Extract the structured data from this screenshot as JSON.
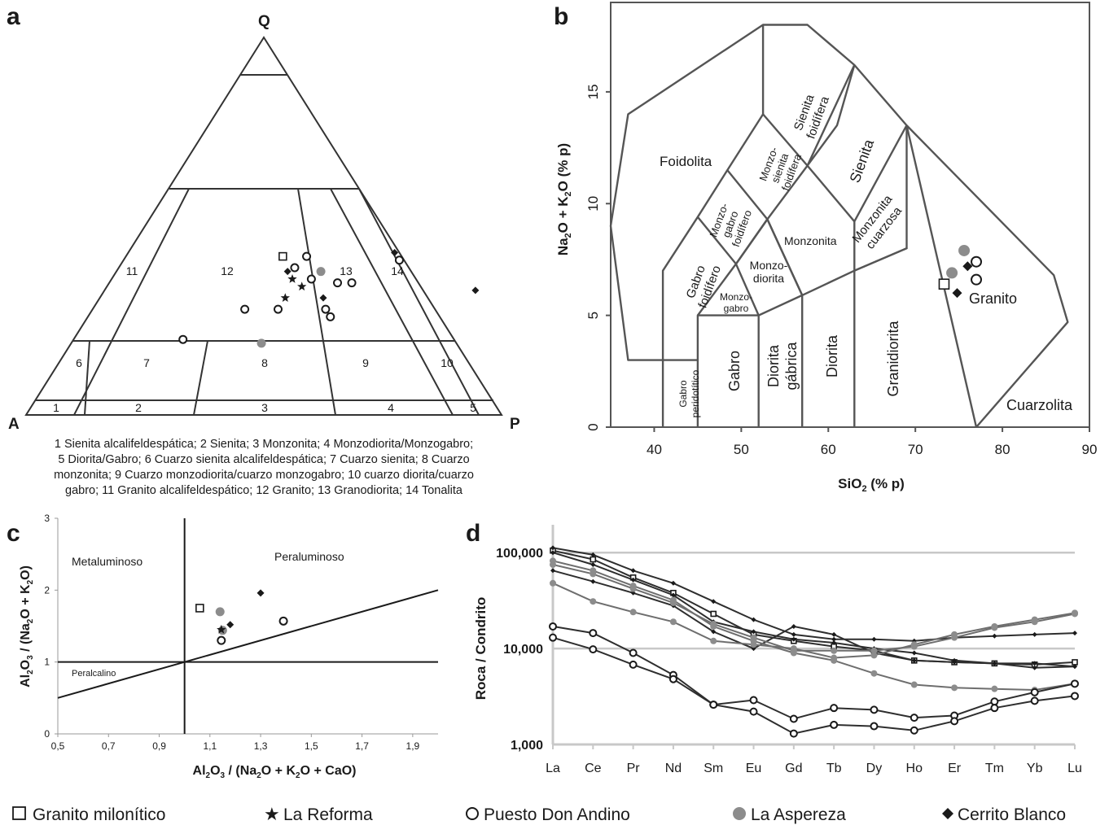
{
  "panel_letters": [
    "a",
    "b",
    "c",
    "d"
  ],
  "legend": [
    {
      "marker": "open-square",
      "label": "Granito milonítico"
    },
    {
      "marker": "star",
      "label": "La Reforma"
    },
    {
      "marker": "open-circle",
      "label": "Puesto Don Andino"
    },
    {
      "marker": "gray-circle",
      "label": "La Aspereza"
    },
    {
      "marker": "black-diamond",
      "label": "Cerrito Blanco"
    }
  ],
  "colors": {
    "line": "#555555",
    "ink": "#1a1a1a",
    "gray_marker": "#8c8c8c",
    "grid": "#c8c8c8"
  },
  "chart_data": [
    {
      "type": "scatter",
      "subtype": "ternary QAP (Streckeisen)",
      "vertices": {
        "top": "Q",
        "left": "A",
        "right": "P"
      },
      "field_numbers": [
        "1",
        "2",
        "3",
        "4",
        "5",
        "6",
        "7",
        "8",
        "9",
        "10",
        "11",
        "12",
        "13",
        "14"
      ],
      "caption_lines": [
        "1 Sienita alcalifeldespática; 2 Sienita; 3 Monzonita; 4 Monzodiorita/Monzogabro;",
        "5 Diorita/Gabro; 6 Cuarzo sienita alcalifeldespática; 7 Cuarzo sienita; 8 Cuarzo",
        "monzonita; 9 Cuarzo monzodiorita/cuarzo monzogabro; 10 cuarzo diorita/cuarzo",
        "gabro; 11 Granito alcalifeldespático; 12 Granito; 13 Granodiorita; 14 Tonalita"
      ],
      "points_QP": [
        {
          "series": "Granito milonítico",
          "Q": 42,
          "P": 33
        },
        {
          "series": "La Reforma",
          "Q": 36,
          "P": 38
        },
        {
          "series": "La Reforma",
          "Q": 34,
          "P": 41
        },
        {
          "series": "La Reforma",
          "Q": 31,
          "P": 39
        },
        {
          "series": "Puesto Don Andino",
          "Q": 42,
          "P": 38
        },
        {
          "series": "Puesto Don Andino",
          "Q": 39,
          "P": 37
        },
        {
          "series": "Puesto Don Andino",
          "Q": 36,
          "P": 42
        },
        {
          "series": "Puesto Don Andino",
          "Q": 35,
          "P": 48
        },
        {
          "series": "Puesto Don Andino",
          "Q": 35,
          "P": 51
        },
        {
          "series": "Puesto Don Andino",
          "Q": 28,
          "P": 32
        },
        {
          "series": "Puesto Don Andino",
          "Q": 28,
          "P": 39
        },
        {
          "series": "Puesto Don Andino",
          "Q": 28,
          "P": 49
        },
        {
          "series": "Puesto Don Andino",
          "Q": 26,
          "P": 51
        },
        {
          "series": "Puesto Don Andino",
          "Q": 20,
          "P": 23
        },
        {
          "series": "Puesto Don Andino",
          "Q": 41,
          "P": 58
        },
        {
          "series": "La Aspereza",
          "Q": 38,
          "P": 43
        },
        {
          "series": "La Aspereza",
          "Q": 19,
          "P": 40
        },
        {
          "series": "Cerrito Blanco",
          "Q": 38,
          "P": 36
        },
        {
          "series": "Cerrito Blanco",
          "Q": 43,
          "P": 56
        },
        {
          "series": "Cerrito Blanco",
          "Q": 31,
          "P": 47
        },
        {
          "series": "Cerrito Blanco",
          "Q": 33,
          "P": 78
        }
      ]
    },
    {
      "type": "scatter",
      "subtype": "TAS classification diagram",
      "xlabel": "SiO",
      "xlabel_sub": "2",
      "xlabel_tail": " (% p)",
      "ylabel": "Na",
      "ylabel_sub1": "2",
      "ylabel_mid": "O + K",
      "ylabel_sub2": "2",
      "ylabel_tail": "O (% p)",
      "xlim": [
        35,
        90
      ],
      "ylim": [
        0,
        19
      ],
      "xticks": [
        40,
        50,
        60,
        70,
        80,
        90
      ],
      "yticks": [
        0,
        5,
        10,
        15
      ],
      "field_labels": [
        "Foidolita",
        "Sienita foidífera",
        "Monzo- sienita foidífera",
        "Sienita",
        "Monzo- gabro foidífero",
        "Monzonita",
        "Monzonita cuarzosa",
        "Gabro foidífero",
        "Monzo- diorita",
        "Monzo- gabro",
        "Gabro peridotítico",
        "Gabro",
        "Diorita gábrica",
        "Diorita",
        "Granidiorita",
        "Granito",
        "Cuarzolita"
      ],
      "points": [
        {
          "series": "Granito milonítico",
          "x": 73.3,
          "y": 6.4
        },
        {
          "series": "La Aspereza",
          "x": 74.2,
          "y": 6.9
        },
        {
          "series": "La Aspereza",
          "x": 75.6,
          "y": 7.9
        },
        {
          "series": "Cerrito Blanco",
          "x": 76.0,
          "y": 7.2
        },
        {
          "series": "Cerrito Blanco",
          "x": 74.8,
          "y": 6.0
        },
        {
          "series": "Puesto Don Andino",
          "x": 77.0,
          "y": 7.4
        },
        {
          "series": "Puesto Don Andino",
          "x": 77.0,
          "y": 6.6
        }
      ]
    },
    {
      "type": "scatter",
      "subtype": "Shand index diagram",
      "xlabel": "Al2O3 / (Na2O + K2O + CaO)",
      "ylabel": "Al2O3 / (Na2O + K2O)",
      "xlim": [
        0.5,
        2.0
      ],
      "ylim": [
        0,
        3
      ],
      "xticks": [
        "0,5",
        "0,7",
        "0,9",
        "1,1",
        "1,3",
        "1,5",
        "1,7",
        "1,9"
      ],
      "yticks": [
        "0",
        "1",
        "2",
        "3"
      ],
      "region_labels": [
        "Metaluminoso",
        "Peraluminoso",
        "Peralcalino"
      ],
      "points": [
        {
          "series": "Granito milonítico",
          "x": 1.06,
          "y": 1.75
        },
        {
          "series": "La Aspereza",
          "x": 1.14,
          "y": 1.7
        },
        {
          "series": "La Aspereza",
          "x": 1.15,
          "y": 1.44
        },
        {
          "series": "La Reforma",
          "x": 1.145,
          "y": 1.45
        },
        {
          "series": "Cerrito Blanco",
          "x": 1.18,
          "y": 1.52
        },
        {
          "series": "Cerrito Blanco",
          "x": 1.3,
          "y": 1.96
        },
        {
          "series": "Puesto Don Andino",
          "x": 1.145,
          "y": 1.3
        },
        {
          "series": "Puesto Don Andino",
          "x": 1.39,
          "y": 1.57
        }
      ]
    },
    {
      "type": "line",
      "subtype": "chondrite-normalized REE spider diagram (log scale)",
      "ylabel": "Roca / Condrito",
      "ylog": true,
      "ylim": [
        1000,
        140000
      ],
      "yticks": [
        "1,000",
        "10,000",
        "100,000"
      ],
      "categories": [
        "La",
        "Ce",
        "Pr",
        "Nd",
        "Sm",
        "Eu",
        "Gd",
        "Tb",
        "Dy",
        "Ho",
        "Er",
        "Tm",
        "Yb",
        "Lu"
      ],
      "series": [
        {
          "marker": "open-square",
          "values": [
            105000,
            85000,
            55000,
            38000,
            23000,
            14000,
            12000,
            10500,
            9500,
            7500,
            7200,
            7000,
            6800,
            7200
          ]
        },
        {
          "marker": "black-diamond",
          "values": [
            112000,
            95000,
            65000,
            48000,
            31000,
            20000,
            14000,
            12500,
            12500,
            12000,
            13000,
            13500,
            14000,
            14500
          ]
        },
        {
          "marker": "black-diamond",
          "values": [
            100000,
            75000,
            52000,
            36000,
            19000,
            15000,
            12500,
            11500,
            10000,
            9000,
            7500,
            7000,
            7000,
            6500
          ]
        },
        {
          "marker": "black-diamond",
          "values": [
            65000,
            50000,
            38000,
            28000,
            15000,
            10000,
            17000,
            14000,
            9000,
            7500,
            7200,
            7000,
            6300,
            6500
          ]
        },
        {
          "marker": "gray-circle",
          "values": [
            82000,
            65000,
            45000,
            32000,
            17000,
            12000,
            9000,
            7500,
            5500,
            4200,
            3900,
            3800,
            3700,
            4300
          ]
        },
        {
          "marker": "gray-circle",
          "values": [
            48000,
            31000,
            24000,
            19000,
            12000,
            11000,
            10000,
            8000,
            8500,
            11000,
            14000,
            17000,
            20000,
            23500
          ]
        },
        {
          "marker": "gray-circle",
          "values": [
            75000,
            60000,
            42000,
            30000,
            18000,
            13000,
            9500,
            9500,
            9500,
            10500,
            13000,
            16500,
            19000,
            23000
          ]
        },
        {
          "marker": "open-circle",
          "values": [
            17000,
            14500,
            9000,
            5300,
            2600,
            2900,
            1850,
            2400,
            2300,
            1900,
            2000,
            2800,
            3500,
            4300
          ]
        },
        {
          "marker": "open-circle",
          "values": [
            13000,
            9800,
            6800,
            4800,
            2600,
            2200,
            1300,
            1600,
            1550,
            1400,
            1750,
            2400,
            2850,
            3200
          ]
        }
      ]
    }
  ]
}
